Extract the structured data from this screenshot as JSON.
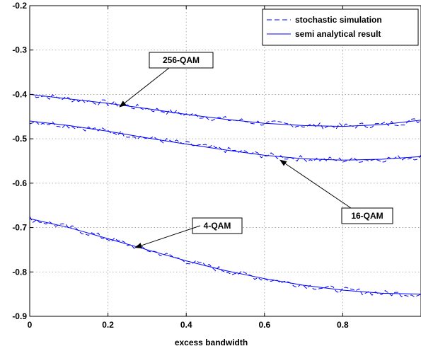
{
  "chart_data": {
    "type": "line",
    "title": "",
    "xlabel": "excess bandwidth",
    "ylabel": "",
    "xlim": [
      0,
      1
    ],
    "ylim": [
      -0.9,
      -0.2
    ],
    "x_ticks": [
      0,
      0.2,
      0.4,
      0.6,
      0.8
    ],
    "x_tick_labels": [
      "0",
      "0.2",
      "0.4",
      "0.6",
      "0.8"
    ],
    "y_ticks": [
      -0.9,
      -0.8,
      -0.7,
      -0.6,
      -0.5,
      -0.4,
      -0.3,
      -0.2
    ],
    "y_tick_labels": [
      "-0.9",
      "-0.8",
      "-0.7",
      "-0.6",
      "-0.5",
      "-0.4",
      "-0.3",
      "-0.2"
    ],
    "grid": true,
    "legend": {
      "position": "top-right",
      "entries": [
        {
          "label": "stochastic simulation",
          "style": "dashed"
        },
        {
          "label": "semi analytical result",
          "style": "solid"
        }
      ]
    },
    "line_color": "#0000ff",
    "x": [
      0,
      0.1,
      0.2,
      0.3,
      0.4,
      0.5,
      0.6,
      0.7,
      0.8,
      0.9,
      1.0
    ],
    "series": [
      {
        "values": [
          -0.4,
          -0.41,
          -0.42,
          -0.432,
          -0.445,
          -0.456,
          -0.465,
          -0.47,
          -0.472,
          -0.468,
          -0.458
        ]
      },
      {
        "values": [
          -0.46,
          -0.47,
          -0.483,
          -0.498,
          -0.512,
          -0.525,
          -0.537,
          -0.545,
          -0.548,
          -0.546,
          -0.54
        ]
      },
      {
        "values": [
          -0.68,
          -0.7,
          -0.725,
          -0.75,
          -0.775,
          -0.797,
          -0.815,
          -0.83,
          -0.841,
          -0.848,
          -0.85
        ]
      }
    ],
    "annotations": [
      {
        "text": "256-QAM",
        "target": [
          0.23,
          -0.428
        ]
      },
      {
        "text": "16-QAM",
        "target": [
          0.64,
          -0.548
        ]
      },
      {
        "text": "4-QAM",
        "target": [
          0.27,
          -0.745
        ]
      }
    ]
  }
}
